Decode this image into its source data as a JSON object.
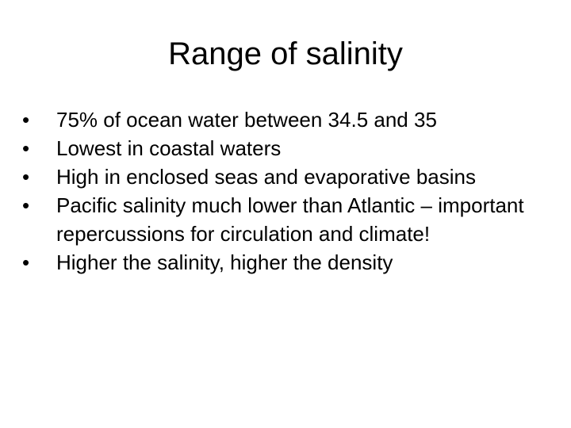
{
  "slide": {
    "title": "Range of salinity",
    "bullet_symbol": "•",
    "bullets": [
      "75% of ocean water between 34.5 and 35",
      "Lowest in coastal waters",
      "High in enclosed seas and evaporative basins",
      "Pacific salinity much lower than Atlantic – important repercussions for circulation and climate!",
      "Higher the salinity, higher the density"
    ]
  }
}
